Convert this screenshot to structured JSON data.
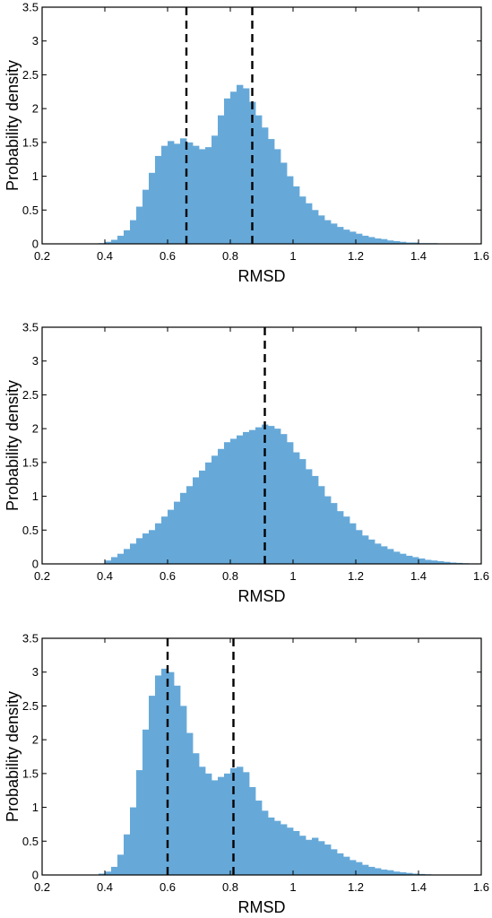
{
  "chart_data": [
    {
      "type": "bar",
      "xlabel": "RMSD",
      "ylabel": "Probability density",
      "xlim": [
        0.2,
        1.6
      ],
      "ylim": [
        0,
        3.5
      ],
      "xticks": [
        "0.2",
        "0.4",
        "0.6",
        "0.8",
        "1",
        "1.2",
        "1.4",
        "1.6"
      ],
      "yticks": [
        "0",
        "0.5",
        "1",
        "1.5",
        "2",
        "2.5",
        "3",
        "3.5"
      ],
      "color": "#66a9d9",
      "grid": false,
      "bin_edges": [
        0.38,
        0.4,
        0.42,
        0.44,
        0.46,
        0.48,
        0.5,
        0.52,
        0.54,
        0.56,
        0.58,
        0.6,
        0.62,
        0.64,
        0.66,
        0.68,
        0.7,
        0.72,
        0.74,
        0.76,
        0.78,
        0.8,
        0.82,
        0.84,
        0.86,
        0.88,
        0.9,
        0.92,
        0.94,
        0.96,
        0.98,
        1.0,
        1.02,
        1.04,
        1.06,
        1.08,
        1.1,
        1.12,
        1.14,
        1.16,
        1.18,
        1.2,
        1.22,
        1.24,
        1.26,
        1.28,
        1.3,
        1.32,
        1.34,
        1.36,
        1.38,
        1.4,
        1.42,
        1.44,
        1.46,
        1.48,
        1.5,
        1.52
      ],
      "values": [
        0.01,
        0.03,
        0.06,
        0.12,
        0.2,
        0.35,
        0.55,
        0.8,
        1.05,
        1.3,
        1.45,
        1.52,
        1.48,
        1.56,
        1.5,
        1.45,
        1.4,
        1.43,
        1.6,
        1.9,
        2.15,
        2.25,
        2.35,
        2.3,
        2.1,
        1.9,
        1.72,
        1.55,
        1.4,
        1.2,
        1.0,
        0.85,
        0.7,
        0.6,
        0.5,
        0.42,
        0.35,
        0.3,
        0.25,
        0.21,
        0.18,
        0.15,
        0.12,
        0.1,
        0.08,
        0.07,
        0.05,
        0.04,
        0.03,
        0.02,
        0.02,
        0.01,
        0.01,
        0.01,
        0.005,
        0.005,
        0.002
      ],
      "median_lines": [
        0.66,
        0.87
      ]
    },
    {
      "type": "bar",
      "xlabel": "RMSD",
      "ylabel": "Probability density",
      "xlim": [
        0.2,
        1.6
      ],
      "ylim": [
        0,
        3.5
      ],
      "xticks": [
        "0.2",
        "0.4",
        "0.6",
        "0.8",
        "1",
        "1.2",
        "1.4",
        "1.6"
      ],
      "yticks": [
        "0",
        "0.5",
        "1",
        "1.5",
        "2",
        "2.5",
        "3",
        "3.5"
      ],
      "color": "#66a9d9",
      "grid": false,
      "bin_edges": [
        0.4,
        0.42,
        0.44,
        0.46,
        0.48,
        0.5,
        0.52,
        0.54,
        0.56,
        0.58,
        0.6,
        0.62,
        0.64,
        0.66,
        0.68,
        0.7,
        0.72,
        0.74,
        0.76,
        0.78,
        0.8,
        0.82,
        0.84,
        0.86,
        0.88,
        0.9,
        0.92,
        0.94,
        0.96,
        0.98,
        1.0,
        1.02,
        1.04,
        1.06,
        1.08,
        1.1,
        1.12,
        1.14,
        1.16,
        1.18,
        1.2,
        1.22,
        1.24,
        1.26,
        1.28,
        1.3,
        1.32,
        1.34,
        1.36,
        1.38,
        1.4,
        1.42,
        1.44,
        1.46,
        1.48,
        1.5,
        1.52,
        1.54,
        1.56
      ],
      "values": [
        0.05,
        0.1,
        0.15,
        0.22,
        0.3,
        0.38,
        0.45,
        0.5,
        0.6,
        0.7,
        0.8,
        0.92,
        1.05,
        1.15,
        1.28,
        1.38,
        1.5,
        1.6,
        1.7,
        1.8,
        1.85,
        1.9,
        1.95,
        1.98,
        2.02,
        2.06,
        2.04,
        2.0,
        1.92,
        1.8,
        1.65,
        1.55,
        1.4,
        1.3,
        1.15,
        1.0,
        0.9,
        0.78,
        0.7,
        0.6,
        0.5,
        0.42,
        0.36,
        0.3,
        0.26,
        0.22,
        0.18,
        0.15,
        0.12,
        0.1,
        0.08,
        0.06,
        0.05,
        0.04,
        0.03,
        0.02,
        0.015,
        0.01
      ],
      "median_lines": [
        0.91
      ]
    },
    {
      "type": "bar",
      "xlabel": "RMSD",
      "ylabel": "Probability density",
      "xlim": [
        0.2,
        1.6
      ],
      "ylim": [
        0,
        3.5
      ],
      "xticks": [
        "0.2",
        "0.4",
        "0.6",
        "0.8",
        "1",
        "1.2",
        "1.4",
        "1.6"
      ],
      "yticks": [
        "0",
        "0.5",
        "1",
        "1.5",
        "2",
        "2.5",
        "3",
        "3.5"
      ],
      "color": "#66a9d9",
      "grid": false,
      "bin_edges": [
        0.38,
        0.4,
        0.42,
        0.44,
        0.46,
        0.48,
        0.5,
        0.52,
        0.54,
        0.56,
        0.58,
        0.6,
        0.62,
        0.64,
        0.66,
        0.68,
        0.7,
        0.72,
        0.74,
        0.76,
        0.78,
        0.8,
        0.82,
        0.84,
        0.86,
        0.88,
        0.9,
        0.92,
        0.94,
        0.96,
        0.98,
        1.0,
        1.02,
        1.04,
        1.06,
        1.08,
        1.1,
        1.12,
        1.14,
        1.16,
        1.18,
        1.2,
        1.22,
        1.24,
        1.26,
        1.28,
        1.3,
        1.32,
        1.34,
        1.36,
        1.38,
        1.4,
        1.42,
        1.44,
        1.46,
        1.48
      ],
      "values": [
        0.02,
        0.05,
        0.12,
        0.3,
        0.6,
        1.0,
        1.55,
        2.15,
        2.65,
        2.95,
        3.05,
        3.0,
        2.8,
        2.5,
        2.1,
        1.8,
        1.6,
        1.5,
        1.4,
        1.45,
        1.5,
        1.58,
        1.6,
        1.52,
        1.3,
        1.1,
        0.95,
        0.85,
        0.8,
        0.75,
        0.7,
        0.65,
        0.58,
        0.52,
        0.55,
        0.5,
        0.45,
        0.38,
        0.32,
        0.27,
        0.22,
        0.19,
        0.15,
        0.12,
        0.1,
        0.08,
        0.07,
        0.05,
        0.04,
        0.03,
        0.02,
        0.015,
        0.01,
        0.005,
        0.003
      ],
      "median_lines": [
        0.6,
        0.81
      ]
    }
  ]
}
